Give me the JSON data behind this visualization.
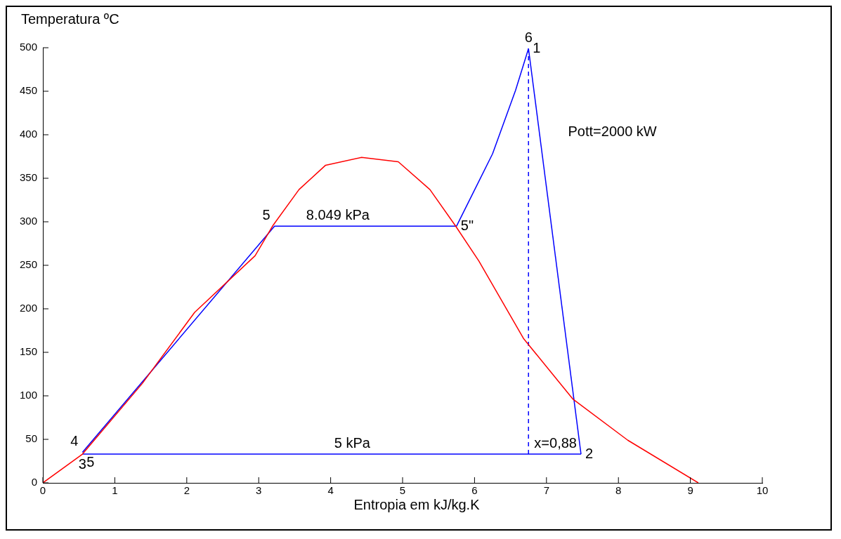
{
  "chart_data": {
    "type": "line",
    "xlabel": "Entropia em kJ/kg.K",
    "ylabel": "Temperatura ºC",
    "xlim": [
      0,
      10
    ],
    "xticks": [
      0,
      1,
      2,
      3,
      4,
      5,
      6,
      7,
      8,
      9,
      10
    ],
    "ylim": [
      0,
      500
    ],
    "yticks": [
      0,
      50,
      100,
      150,
      200,
      250,
      300,
      350,
      400,
      450,
      500
    ],
    "grid": false,
    "legend": false,
    "marker": "none",
    "series": [
      {
        "color": "#ff0000",
        "x": [
          0,
          0.55,
          1.38,
          2.11,
          2.95,
          3.2,
          3.56,
          3.93,
          4.43,
          4.94,
          5.38,
          5.73,
          6.06,
          6.68,
          7.37,
          8.13,
          9.11
        ],
        "values": [
          0,
          33,
          114,
          196,
          261,
          296,
          337,
          365,
          374,
          369,
          337,
          296,
          255,
          166,
          96,
          49,
          0
        ]
      },
      {
        "color": "#0000ff",
        "x": [
          0.55,
          3.22,
          5.75,
          6.25,
          6.57,
          6.75
        ],
        "values": [
          35,
          295,
          295,
          378,
          451,
          499
        ]
      },
      {
        "color": "#0000ff",
        "x": [
          6.75,
          7.48
        ],
        "values": [
          499,
          33
        ]
      },
      {
        "color": "#0000ff",
        "x": [
          0.55,
          7.48
        ],
        "values": [
          33,
          33
        ]
      },
      {
        "color": "#0000ff",
        "line_style": "dashed",
        "x": [
          6.75,
          6.75
        ],
        "values": [
          33,
          499
        ]
      }
    ],
    "annotations": [
      {
        "text": "6",
        "x": 6.75,
        "y": 499
      },
      {
        "text": "1",
        "x": 6.75,
        "y": 499
      },
      {
        "text": "5",
        "x": 3.22,
        "y": 295
      },
      {
        "text": "8.049 kPa",
        "x": 4.1,
        "y": 295
      },
      {
        "text": "5\"",
        "x": 5.75,
        "y": 295
      },
      {
        "text": "4",
        "x": 0.55,
        "y": 35
      },
      {
        "text": "5",
        "x": 0.55,
        "y": 35
      },
      {
        "text": "3",
        "x": 0.55,
        "y": 33
      },
      {
        "text": "5 kPa",
        "x": 4.3,
        "y": 33
      },
      {
        "text": "2",
        "x": 7.48,
        "y": 33
      },
      {
        "text": "x=0,88",
        "x": 7.48,
        "y": 33
      },
      "Pott=2000 kW"
    ]
  }
}
